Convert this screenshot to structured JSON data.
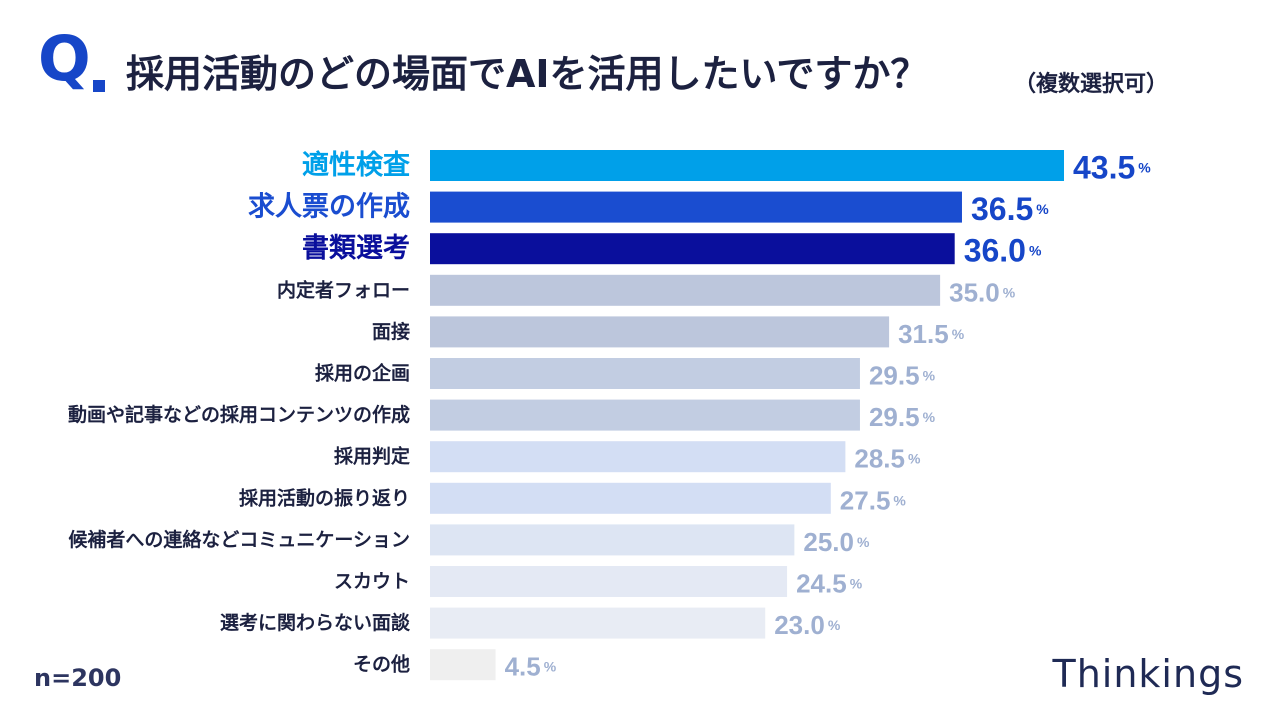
{
  "question": {
    "prefix": "Q",
    "text": "採用活動のどの場面でAIを活用したいですか？",
    "note": "（複数選択可）"
  },
  "sample_size": "n=200",
  "brand": "Thinkings",
  "chart_data": {
    "type": "bar",
    "orientation": "horizontal",
    "unit": "%",
    "xlim": [
      0,
      43.5
    ],
    "categories": [
      "適性検査",
      "求人票の作成",
      "書類選考",
      "内定者フォロー",
      "面接",
      "採用の企画",
      "動画や記事などの採用コンテンツの作成",
      "採用判定",
      "採用活動の振り返り",
      "候補者への連絡などコミュニケーション",
      "スカウト",
      "選考に関わらない面談",
      "その他"
    ],
    "values": [
      43.5,
      36.5,
      36.0,
      35.0,
      31.5,
      29.5,
      29.5,
      28.5,
      27.5,
      25.0,
      24.5,
      23.0,
      4.5
    ],
    "value_labels": [
      "43.5",
      "36.5",
      "36.0",
      "35.0",
      "31.5",
      "29.5",
      "29.5",
      "28.5",
      "27.5",
      "25.0",
      "24.5",
      "23.0",
      "4.5"
    ],
    "highlight_count": 3,
    "bar_colors": [
      "#00a0e9",
      "#1a4dd0",
      "#0a0f9c",
      "#bcc6dc",
      "#bcc6dc",
      "#c2cde2",
      "#c2cde2",
      "#d3def4",
      "#d3def4",
      "#dde5f3",
      "#e4e9f4",
      "#e8ecf4",
      "#efefef"
    ],
    "label_colors": [
      "#00a0e9",
      "#1a4dd0",
      "#0a0f9c",
      "#1c2140",
      "#1c2140",
      "#1c2140",
      "#1c2140",
      "#1c2140",
      "#1c2140",
      "#1c2140",
      "#1c2140",
      "#1c2140",
      "#1c2140"
    ],
    "value_colors": [
      "#1646c8",
      "#1646c8",
      "#1646c8",
      "#9fb0d1",
      "#9fb0d1",
      "#9fb0d1",
      "#9fb0d1",
      "#9fb0d1",
      "#9fb0d1",
      "#9fb0d1",
      "#9fb0d1",
      "#9fb0d1",
      "#9fb0d1"
    ]
  }
}
